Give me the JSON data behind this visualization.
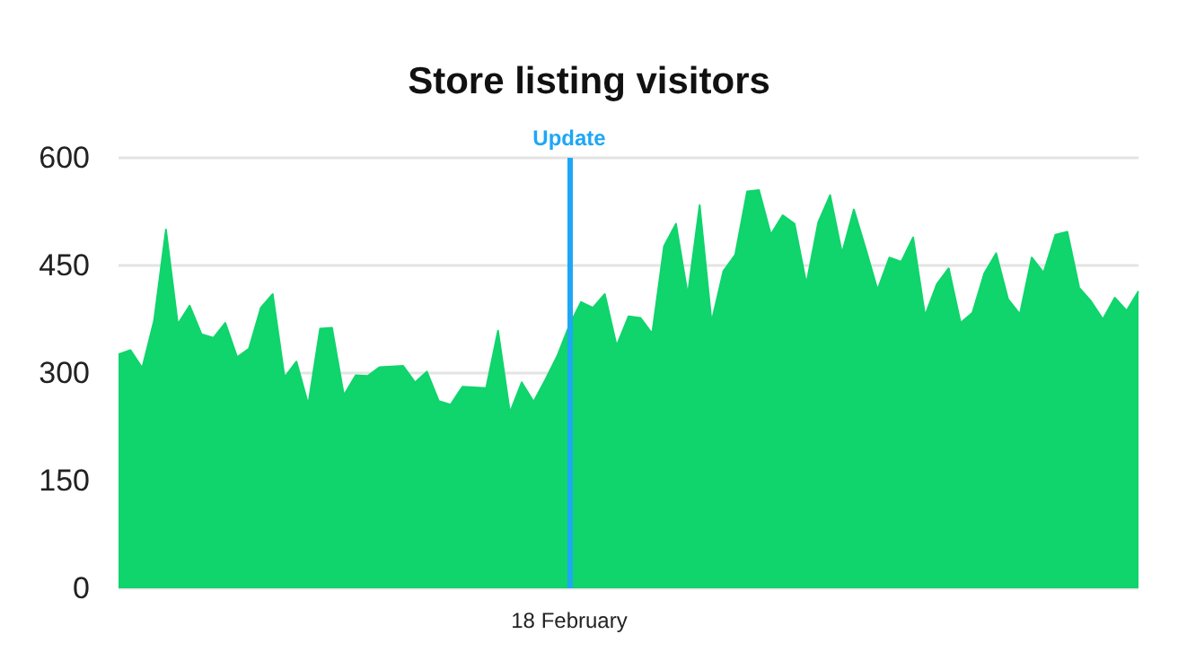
{
  "chart_data": {
    "type": "area",
    "title": "Store listing visitors",
    "categories": [
      null,
      null,
      null,
      null,
      null,
      null,
      null,
      null,
      null,
      null,
      null,
      null,
      null,
      null,
      null,
      null,
      null,
      null,
      null,
      null,
      null,
      null,
      null,
      null,
      null,
      null,
      null,
      null,
      null,
      null,
      null,
      null,
      null,
      null,
      null,
      null,
      null,
      null,
      "18 February",
      null,
      null,
      null,
      null,
      null,
      null,
      null,
      null,
      null,
      null,
      null,
      null,
      null,
      null,
      null,
      null,
      null,
      null,
      null,
      null,
      null,
      null,
      null,
      null,
      null,
      null,
      null,
      null,
      null,
      null,
      null,
      null,
      null,
      null,
      null,
      null,
      null,
      null,
      null,
      null,
      null,
      null,
      null,
      null,
      null,
      null,
      null,
      null
    ],
    "series": [
      {
        "color": "#10d46c",
        "values": [
          326,
          332,
          307,
          373,
          500,
          368,
          394,
          354,
          349,
          370,
          322,
          334,
          391,
          410,
          294,
          316,
          256,
          362,
          363,
          269,
          297,
          296,
          308,
          309,
          310,
          287,
          302,
          261,
          256,
          281,
          280,
          279,
          359,
          245,
          287,
          260,
          291,
          324,
          366,
          399,
          391,
          410,
          338,
          379,
          377,
          355,
          477,
          508,
          409,
          534,
          371,
          442,
          465,
          553,
          555,
          493,
          520,
          508,
          424,
          510,
          548,
          467,
          528,
          473,
          416,
          461,
          455,
          489,
          380,
          424,
          446,
          370,
          384,
          439,
          467,
          403,
          382,
          461,
          440,
          493,
          497,
          419,
          400,
          375,
          405,
          387,
          414
        ]
      }
    ],
    "ylim": [
      0,
      600
    ],
    "yticks": [
      0,
      150,
      300,
      450,
      600
    ],
    "grid": "y",
    "marker": "none",
    "ref_lines": [
      {
        "axis": "x",
        "value": "18 February",
        "label": "Update",
        "color": "#1ea7f5"
      }
    ]
  }
}
